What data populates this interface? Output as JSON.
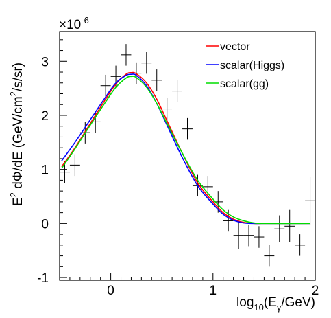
{
  "chart_data": {
    "type": "line",
    "title": "",
    "xlabel": {
      "base": "log",
      "sub1": "10",
      "mid": "(E",
      "sub2": "γ",
      "end": "/GeV)"
    },
    "ylabel": {
      "base": "E",
      "sup": "2",
      "mid": " dΦ/dE (GeV/cm",
      "sup2": "2",
      "end": "/s/sr)"
    },
    "y_multiplier": {
      "base": "×10",
      "exp": "-6"
    },
    "xlim": [
      -0.5,
      2.0
    ],
    "ylim": [
      -1.05,
      3.55
    ],
    "x_ticks": [
      0,
      1,
      2
    ],
    "x_tick_labels": [
      "0",
      "1",
      "2"
    ],
    "y_ticks": [
      -1,
      0,
      1,
      2,
      3
    ],
    "y_tick_labels": [
      "-1",
      "0",
      "1",
      "2",
      "3"
    ],
    "grid": false,
    "legend_position": "top-right",
    "series": [
      {
        "name": "vector",
        "color": "#ff0000",
        "x": [
          -0.48,
          -0.35,
          -0.2,
          -0.05,
          0.05,
          0.15,
          0.2,
          0.25,
          0.35,
          0.45,
          0.55,
          0.7,
          0.85,
          1.0,
          1.1,
          1.2,
          1.3,
          1.4,
          1.5,
          1.95
        ],
        "y": [
          1.05,
          1.4,
          1.85,
          2.3,
          2.58,
          2.76,
          2.79,
          2.77,
          2.6,
          2.3,
          1.9,
          1.3,
          0.75,
          0.4,
          0.2,
          0.08,
          0.02,
          0.0,
          0.0,
          0.0
        ]
      },
      {
        "name": "scalar(Higgs)",
        "color": "#0000ff",
        "x": [
          -0.48,
          -0.35,
          -0.2,
          -0.05,
          0.05,
          0.15,
          0.2,
          0.25,
          0.35,
          0.45,
          0.55,
          0.7,
          0.85,
          1.0,
          1.1,
          1.2,
          1.3,
          1.4,
          1.5,
          1.95
        ],
        "y": [
          1.16,
          1.5,
          1.92,
          2.34,
          2.6,
          2.74,
          2.76,
          2.74,
          2.55,
          2.22,
          1.82,
          1.22,
          0.7,
          0.36,
          0.17,
          0.06,
          0.01,
          0.0,
          0.0,
          0.0
        ]
      },
      {
        "name": "scalar(gg)",
        "color": "#00dd00",
        "x": [
          -0.48,
          -0.35,
          -0.2,
          -0.05,
          0.05,
          0.15,
          0.2,
          0.25,
          0.35,
          0.45,
          0.55,
          0.7,
          0.85,
          1.0,
          1.1,
          1.2,
          1.3,
          1.4,
          1.5,
          1.95
        ],
        "y": [
          1.02,
          1.38,
          1.82,
          2.25,
          2.52,
          2.69,
          2.72,
          2.7,
          2.52,
          2.22,
          1.85,
          1.3,
          0.8,
          0.45,
          0.25,
          0.12,
          0.05,
          0.01,
          0.0,
          0.0
        ]
      }
    ],
    "data_points": {
      "x": [
        -0.45,
        -0.35,
        -0.25,
        -0.15,
        -0.05,
        0.05,
        0.15,
        0.25,
        0.35,
        0.45,
        0.55,
        0.65,
        0.75,
        0.85,
        0.95,
        1.05,
        1.15,
        1.25,
        1.35,
        1.45,
        1.55,
        1.65,
        1.75,
        1.85,
        1.95
      ],
      "y": [
        0.95,
        1.08,
        1.68,
        1.88,
        2.55,
        2.72,
        3.12,
        2.78,
        2.97,
        2.65,
        2.12,
        2.45,
        1.75,
        0.7,
        0.68,
        0.4,
        0.05,
        -0.22,
        -0.22,
        -0.25,
        -0.6,
        -0.1,
        -0.05,
        -0.4,
        0.42
      ],
      "yerr": [
        0.2,
        0.2,
        0.2,
        0.2,
        0.2,
        0.2,
        0.2,
        0.2,
        0.2,
        0.2,
        0.2,
        0.2,
        0.2,
        0.2,
        0.2,
        0.2,
        0.2,
        0.25,
        0.2,
        0.2,
        0.2,
        0.25,
        0.3,
        0.2,
        0.45
      ],
      "xerr": 0.05
    }
  }
}
